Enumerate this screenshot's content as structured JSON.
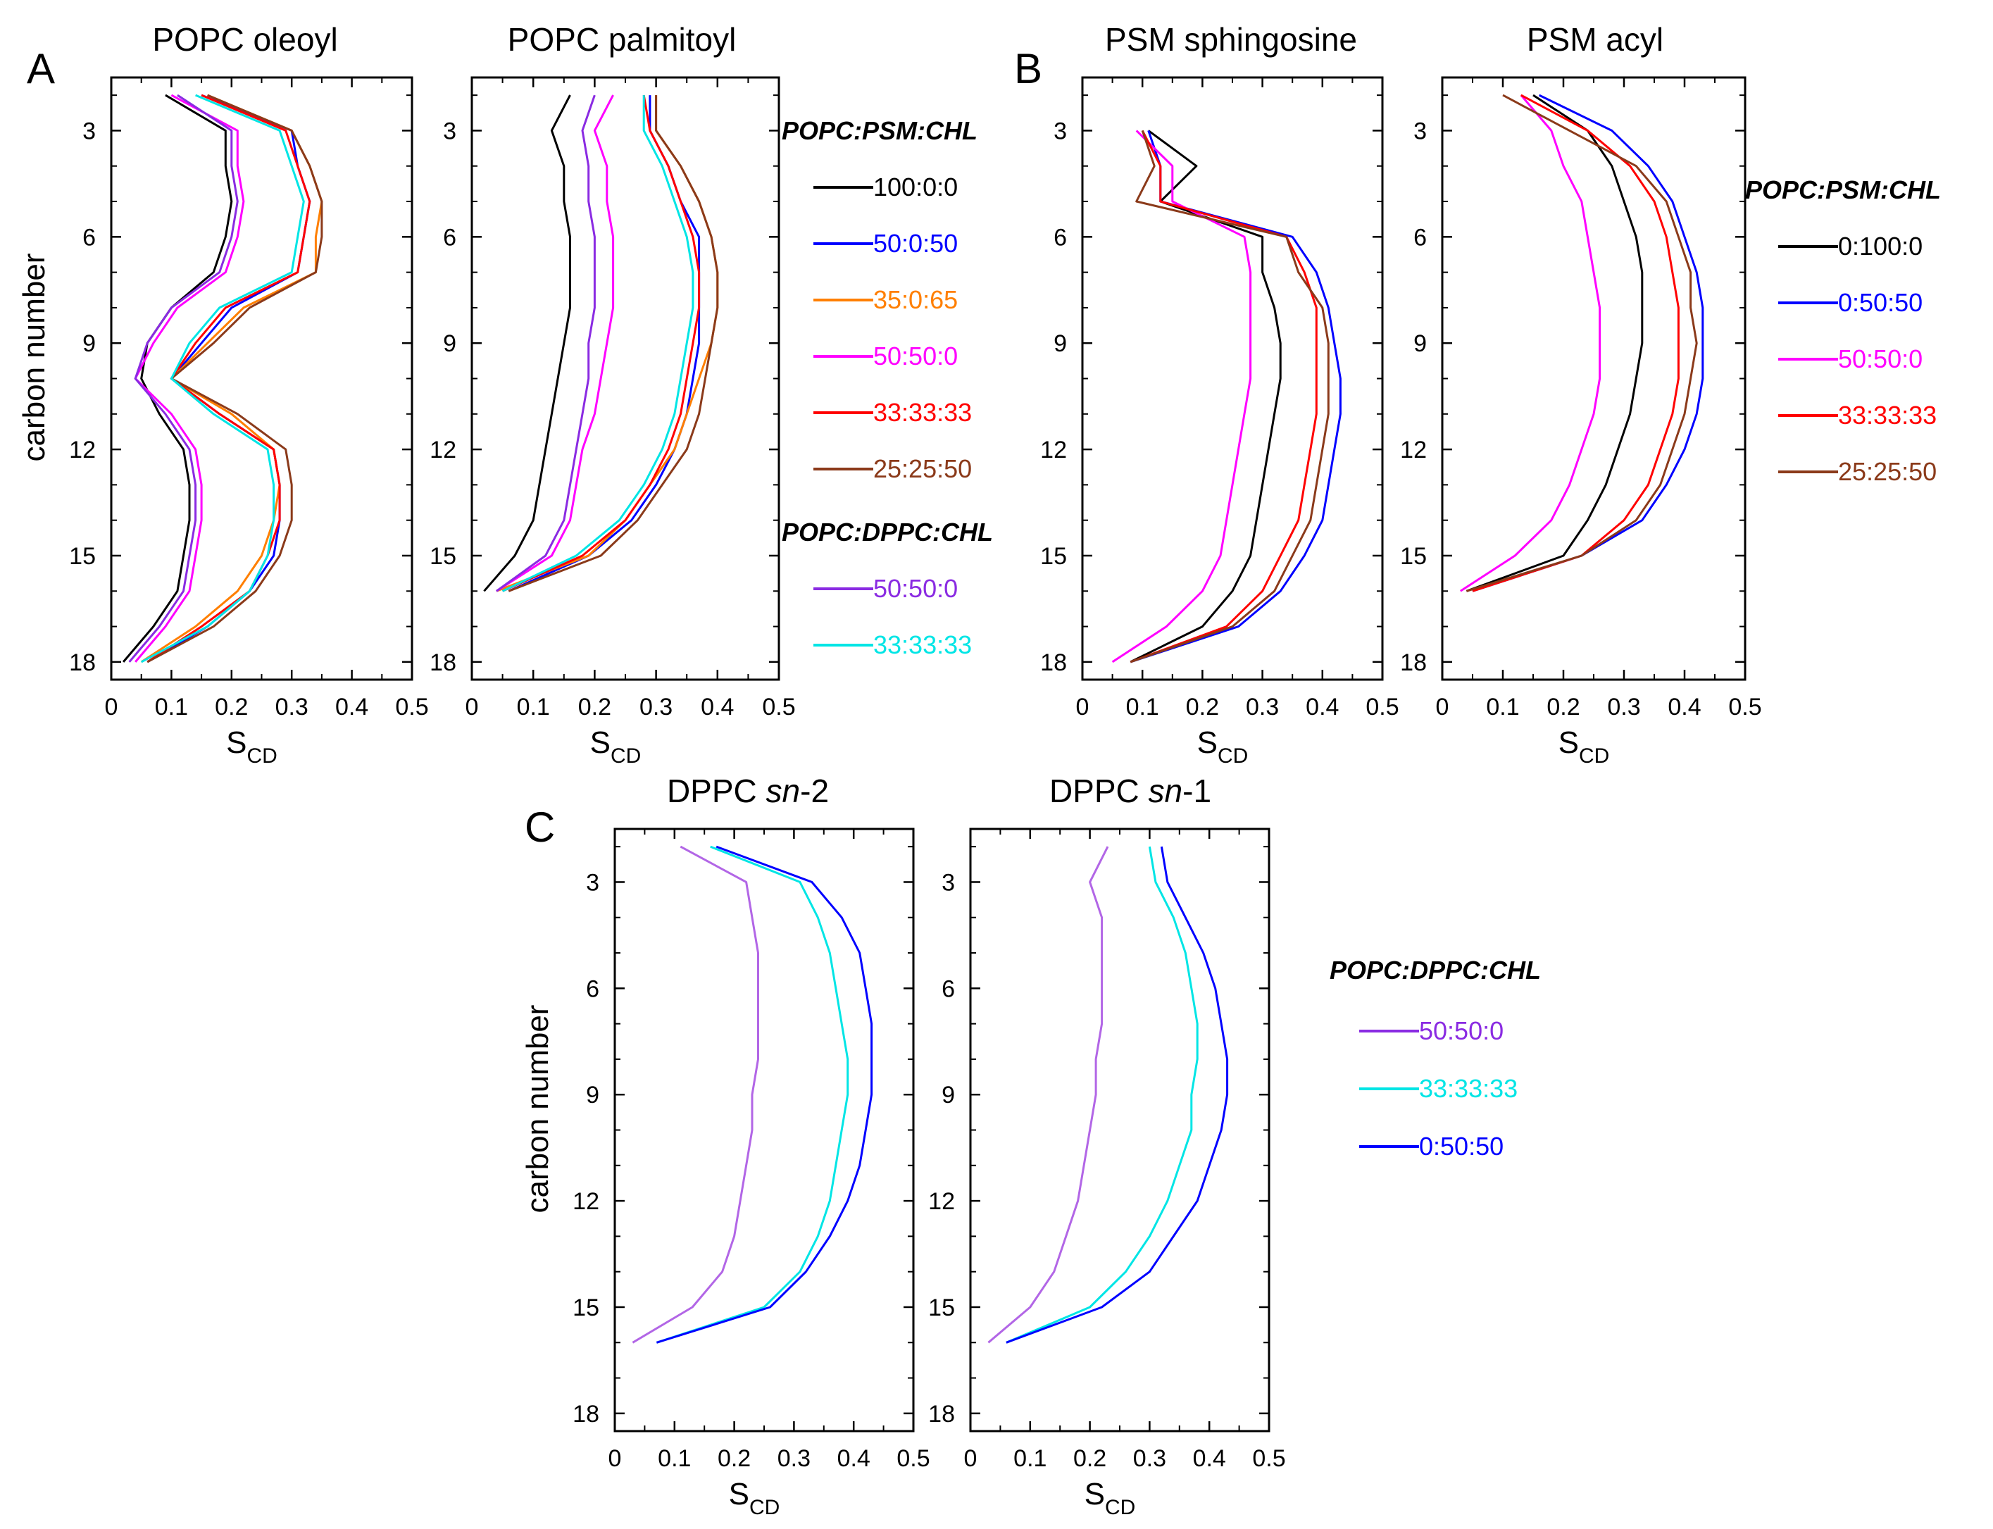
{
  "panel_labels": [
    "A",
    "B",
    "C"
  ],
  "legends": {
    "A": {
      "groups": [
        {
          "title": "POPC:PSM:CHL",
          "entries": [
            {
              "label": "100:0:0",
              "color": "#000000"
            },
            {
              "label": "50:0:50",
              "color": "#0000ff"
            },
            {
              "label": "35:0:65",
              "color": "#ff7f00"
            },
            {
              "label": "50:50:0",
              "color": "#ff00ff"
            },
            {
              "label": "33:33:33",
              "color": "#ff0000"
            },
            {
              "label": "25:25:50",
              "color": "#8b3a1a"
            }
          ]
        },
        {
          "title": "POPC:DPPC:CHL",
          "entries": [
            {
              "label": "50:50:0",
              "color": "#8a2be2"
            },
            {
              "label": "33:33:33",
              "color": "#00e5e5"
            }
          ]
        }
      ]
    },
    "B": {
      "groups": [
        {
          "title": "POPC:PSM:CHL",
          "entries": [
            {
              "label": "0:100:0",
              "color": "#000000"
            },
            {
              "label": "0:50:50",
              "color": "#0000ff"
            },
            {
              "label": "50:50:0",
              "color": "#ff00ff"
            },
            {
              "label": "33:33:33",
              "color": "#ff0000"
            },
            {
              "label": "25:25:50",
              "color": "#8b3a1a"
            }
          ]
        }
      ]
    },
    "C": {
      "groups": [
        {
          "title": "POPC:DPPC:CHL",
          "entries": [
            {
              "label": "50:50:0",
              "color": "#8a2be2"
            },
            {
              "label": "33:33:33",
              "color": "#00e5e5"
            },
            {
              "label": "0:50:50",
              "color": "#0000ff"
            }
          ]
        }
      ]
    }
  },
  "chart_data": [
    {
      "type": "line",
      "panel": "A",
      "title": "POPC oleoyl",
      "xlabel": "S",
      "xlabel_sub": "CD",
      "ylabel": "carbon number",
      "xlim": [
        0,
        0.5
      ],
      "ylim": [
        18.5,
        1.5
      ],
      "xticks": [
        "0",
        "0.1",
        "0.2",
        "0.3",
        "0.4",
        "0.5"
      ],
      "yticks": [
        "3",
        "6",
        "9",
        "12",
        "15",
        "18"
      ],
      "x": [
        2,
        3,
        4,
        5,
        6,
        7,
        8,
        9,
        10,
        11,
        12,
        13,
        14,
        15,
        16,
        17,
        18
      ],
      "series": [
        {
          "name": "100:0:0",
          "color": "#000000",
          "values": [
            0.09,
            0.19,
            0.19,
            0.2,
            0.19,
            0.17,
            0.1,
            0.06,
            0.05,
            0.08,
            0.12,
            0.13,
            0.13,
            0.12,
            0.11,
            0.07,
            0.02
          ]
        },
        {
          "name": "50:0:50",
          "color": "#0000ff",
          "values": [
            0.15,
            0.3,
            0.31,
            0.33,
            0.32,
            0.31,
            0.2,
            0.15,
            0.1,
            0.18,
            0.27,
            0.28,
            0.28,
            0.27,
            0.23,
            0.16,
            0.06
          ]
        },
        {
          "name": "35:0:65",
          "color": "#ff7f00",
          "values": [
            0.16,
            0.3,
            0.33,
            0.35,
            0.34,
            0.34,
            0.22,
            0.16,
            0.1,
            0.2,
            0.27,
            0.28,
            0.27,
            0.25,
            0.21,
            0.14,
            0.05
          ]
        },
        {
          "name": "50:50:0",
          "color": "#ff00ff",
          "values": [
            0.1,
            0.21,
            0.21,
            0.22,
            0.21,
            0.19,
            0.11,
            0.07,
            0.04,
            0.1,
            0.14,
            0.15,
            0.15,
            0.14,
            0.13,
            0.09,
            0.04
          ]
        },
        {
          "name": "33:33:33",
          "color": "#ff0000",
          "values": [
            0.15,
            0.29,
            0.31,
            0.33,
            0.32,
            0.31,
            0.19,
            0.14,
            0.1,
            0.18,
            0.27,
            0.28,
            0.28,
            0.26,
            0.23,
            0.15,
            0.06
          ]
        },
        {
          "name": "25:25:50",
          "color": "#8b3a1a",
          "values": [
            0.16,
            0.3,
            0.33,
            0.35,
            0.35,
            0.34,
            0.23,
            0.17,
            0.1,
            0.21,
            0.29,
            0.3,
            0.3,
            0.28,
            0.24,
            0.17,
            0.06
          ]
        },
        {
          "name": "50:50:0 (DPPC)",
          "color": "#8a2be2",
          "values": [
            0.11,
            0.2,
            0.2,
            0.21,
            0.2,
            0.18,
            0.1,
            0.06,
            0.04,
            0.09,
            0.13,
            0.14,
            0.14,
            0.13,
            0.12,
            0.08,
            0.03
          ]
        },
        {
          "name": "33:33:33 (DPPC)",
          "color": "#00e5e5",
          "values": [
            0.14,
            0.28,
            0.3,
            0.32,
            0.31,
            0.3,
            0.18,
            0.13,
            0.1,
            0.17,
            0.26,
            0.27,
            0.27,
            0.26,
            0.23,
            0.16,
            0.05
          ]
        }
      ]
    },
    {
      "type": "line",
      "panel": "A",
      "title": "POPC palmitoyl",
      "xlabel": "S",
      "xlabel_sub": "CD",
      "ylabel": "",
      "xlim": [
        0,
        0.5
      ],
      "ylim": [
        18.5,
        1.5
      ],
      "xticks": [
        "0",
        "0.1",
        "0.2",
        "0.3",
        "0.4",
        "0.5"
      ],
      "yticks": [
        "3",
        "6",
        "9",
        "12",
        "15",
        "18"
      ],
      "x": [
        2,
        3,
        4,
        5,
        6,
        7,
        8,
        9,
        10,
        11,
        12,
        13,
        14,
        15,
        16
      ],
      "series": [
        {
          "name": "100:0:0",
          "color": "#000000",
          "values": [
            0.16,
            0.13,
            0.15,
            0.15,
            0.16,
            0.16,
            0.16,
            0.15,
            0.14,
            0.13,
            0.12,
            0.11,
            0.1,
            0.07,
            0.02
          ]
        },
        {
          "name": "50:0:50",
          "color": "#0000ff",
          "values": [
            0.29,
            0.29,
            0.32,
            0.34,
            0.37,
            0.37,
            0.37,
            0.37,
            0.36,
            0.35,
            0.33,
            0.3,
            0.26,
            0.19,
            0.06
          ]
        },
        {
          "name": "35:0:65",
          "color": "#ff7f00",
          "values": [
            0.3,
            0.3,
            0.34,
            0.37,
            0.39,
            0.4,
            0.4,
            0.39,
            0.37,
            0.35,
            0.33,
            0.29,
            0.25,
            0.19,
            0.04
          ]
        },
        {
          "name": "50:50:0",
          "color": "#ff00ff",
          "values": [
            0.23,
            0.2,
            0.22,
            0.22,
            0.23,
            0.23,
            0.23,
            0.22,
            0.21,
            0.2,
            0.18,
            0.17,
            0.16,
            0.13,
            0.04
          ]
        },
        {
          "name": "33:33:33",
          "color": "#ff0000",
          "values": [
            0.28,
            0.29,
            0.32,
            0.34,
            0.36,
            0.37,
            0.37,
            0.36,
            0.35,
            0.34,
            0.32,
            0.29,
            0.25,
            0.18,
            0.05
          ]
        },
        {
          "name": "25:25:50",
          "color": "#8b3a1a",
          "values": [
            0.3,
            0.3,
            0.34,
            0.37,
            0.39,
            0.4,
            0.4,
            0.39,
            0.38,
            0.37,
            0.35,
            0.31,
            0.27,
            0.21,
            0.06
          ]
        },
        {
          "name": "50:50:0 (DPPC)",
          "color": "#8a2be2",
          "values": [
            0.2,
            0.18,
            0.19,
            0.19,
            0.2,
            0.2,
            0.2,
            0.19,
            0.19,
            0.18,
            0.17,
            0.16,
            0.15,
            0.12,
            0.04
          ]
        },
        {
          "name": "33:33:33 (DPPC)",
          "color": "#00e5e5",
          "values": [
            0.28,
            0.28,
            0.31,
            0.33,
            0.35,
            0.36,
            0.36,
            0.35,
            0.34,
            0.33,
            0.31,
            0.28,
            0.24,
            0.17,
            0.05
          ]
        }
      ]
    },
    {
      "type": "line",
      "panel": "B",
      "title": "PSM sphingosine",
      "xlabel": "S",
      "xlabel_sub": "CD",
      "ylabel": "",
      "xlim": [
        0,
        0.5
      ],
      "ylim": [
        18.5,
        1.5
      ],
      "xticks": [
        "0",
        "0.1",
        "0.2",
        "0.3",
        "0.4",
        "0.5"
      ],
      "yticks": [
        "3",
        "6",
        "9",
        "12",
        "15",
        "18"
      ],
      "x": [
        3,
        4,
        5,
        6,
        7,
        8,
        9,
        10,
        11,
        12,
        13,
        14,
        15,
        16,
        17,
        18
      ],
      "series": [
        {
          "name": "0:100:0",
          "color": "#000000",
          "values": [
            0.11,
            0.19,
            0.13,
            0.3,
            0.3,
            0.32,
            0.33,
            0.33,
            0.32,
            0.31,
            0.3,
            0.29,
            0.28,
            0.25,
            0.2,
            0.08
          ]
        },
        {
          "name": "0:50:50",
          "color": "#0000ff",
          "values": [
            0.11,
            0.13,
            0.13,
            0.35,
            0.39,
            0.41,
            0.42,
            0.43,
            0.43,
            0.42,
            0.41,
            0.4,
            0.37,
            0.33,
            0.26,
            0.08
          ]
        },
        {
          "name": "50:50:0",
          "color": "#ff00ff",
          "values": [
            0.09,
            0.15,
            0.15,
            0.27,
            0.28,
            0.28,
            0.28,
            0.28,
            0.27,
            0.26,
            0.25,
            0.24,
            0.23,
            0.2,
            0.14,
            0.05
          ]
        },
        {
          "name": "33:33:33",
          "color": "#ff0000",
          "values": [
            0.1,
            0.13,
            0.13,
            0.34,
            0.37,
            0.39,
            0.39,
            0.39,
            0.39,
            0.38,
            0.37,
            0.36,
            0.33,
            0.3,
            0.24,
            0.08
          ]
        },
        {
          "name": "25:25:50",
          "color": "#8b3a1a",
          "values": [
            0.1,
            0.12,
            0.09,
            0.34,
            0.36,
            0.4,
            0.41,
            0.41,
            0.41,
            0.4,
            0.39,
            0.38,
            0.35,
            0.32,
            0.25,
            0.08
          ]
        }
      ]
    },
    {
      "type": "line",
      "panel": "B",
      "title": "PSM acyl",
      "xlabel": "S",
      "xlabel_sub": "CD",
      "ylabel": "",
      "xlim": [
        0,
        0.5
      ],
      "ylim": [
        18.5,
        1.5
      ],
      "xticks": [
        "0",
        "0.1",
        "0.2",
        "0.3",
        "0.4",
        "0.5"
      ],
      "yticks": [
        "3",
        "6",
        "9",
        "12",
        "15",
        "18"
      ],
      "x": [
        2,
        3,
        4,
        5,
        6,
        7,
        8,
        9,
        10,
        11,
        12,
        13,
        14,
        15,
        16
      ],
      "series": [
        {
          "name": "0:100:0",
          "color": "#000000",
          "values": [
            0.15,
            0.24,
            0.28,
            0.3,
            0.32,
            0.33,
            0.33,
            0.33,
            0.32,
            0.31,
            0.29,
            0.27,
            0.24,
            0.2,
            0.04
          ]
        },
        {
          "name": "0:50:50",
          "color": "#0000ff",
          "values": [
            0.16,
            0.28,
            0.34,
            0.38,
            0.4,
            0.42,
            0.43,
            0.43,
            0.43,
            0.42,
            0.4,
            0.37,
            0.33,
            0.23,
            0.05
          ]
        },
        {
          "name": "50:50:0",
          "color": "#ff00ff",
          "values": [
            0.13,
            0.18,
            0.2,
            0.23,
            0.24,
            0.25,
            0.26,
            0.26,
            0.26,
            0.25,
            0.23,
            0.21,
            0.18,
            0.12,
            0.03
          ]
        },
        {
          "name": "33:33:33",
          "color": "#ff0000",
          "values": [
            0.13,
            0.24,
            0.31,
            0.35,
            0.37,
            0.38,
            0.39,
            0.39,
            0.39,
            0.38,
            0.36,
            0.34,
            0.3,
            0.23,
            0.05
          ]
        },
        {
          "name": "25:25:50",
          "color": "#8b3a1a",
          "values": [
            0.1,
            0.21,
            0.32,
            0.37,
            0.39,
            0.41,
            0.41,
            0.42,
            0.41,
            0.4,
            0.38,
            0.36,
            0.32,
            0.23,
            0.04
          ]
        }
      ]
    },
    {
      "type": "line",
      "panel": "C",
      "title": "DPPC sn-2",
      "title_prefix": "DPPC ",
      "title_italic": "sn",
      "title_suffix": "-2",
      "xlabel": "S",
      "xlabel_sub": "CD",
      "ylabel": "carbon number",
      "xlim": [
        0,
        0.5
      ],
      "ylim": [
        18.5,
        1.5
      ],
      "xticks": [
        "0",
        "0.1",
        "0.2",
        "0.3",
        "0.4",
        "0.5"
      ],
      "yticks": [
        "3",
        "6",
        "9",
        "12",
        "15",
        "18"
      ],
      "x": [
        2,
        3,
        4,
        5,
        6,
        7,
        8,
        9,
        10,
        11,
        12,
        13,
        14,
        15,
        16
      ],
      "series": [
        {
          "name": "50:50:0",
          "color": "#b266e6",
          "values": [
            0.11,
            0.22,
            0.23,
            0.24,
            0.24,
            0.24,
            0.24,
            0.23,
            0.23,
            0.22,
            0.21,
            0.2,
            0.18,
            0.13,
            0.03
          ]
        },
        {
          "name": "33:33:33",
          "color": "#00e5e5",
          "values": [
            0.16,
            0.31,
            0.34,
            0.36,
            0.37,
            0.38,
            0.39,
            0.39,
            0.38,
            0.37,
            0.36,
            0.34,
            0.31,
            0.25,
            0.07
          ]
        },
        {
          "name": "0:50:50",
          "color": "#0000ff",
          "values": [
            0.17,
            0.33,
            0.38,
            0.41,
            0.42,
            0.43,
            0.43,
            0.43,
            0.42,
            0.41,
            0.39,
            0.36,
            0.32,
            0.26,
            0.07
          ]
        }
      ]
    },
    {
      "type": "line",
      "panel": "C",
      "title": "DPPC sn-1",
      "title_prefix": "DPPC ",
      "title_italic": "sn",
      "title_suffix": "-1",
      "xlabel": "S",
      "xlabel_sub": "CD",
      "ylabel": "",
      "xlim": [
        0,
        0.5
      ],
      "ylim": [
        18.5,
        1.5
      ],
      "xticks": [
        "0",
        "0.1",
        "0.2",
        "0.3",
        "0.4",
        "0.5"
      ],
      "yticks": [
        "3",
        "6",
        "9",
        "12",
        "15",
        "18"
      ],
      "x": [
        2,
        3,
        4,
        5,
        6,
        7,
        8,
        9,
        10,
        11,
        12,
        13,
        14,
        15,
        16
      ],
      "series": [
        {
          "name": "50:50:0",
          "color": "#b266e6",
          "values": [
            0.23,
            0.2,
            0.22,
            0.22,
            0.22,
            0.22,
            0.21,
            0.21,
            0.2,
            0.19,
            0.18,
            0.16,
            0.14,
            0.1,
            0.03
          ]
        },
        {
          "name": "33:33:33",
          "color": "#00e5e5",
          "values": [
            0.3,
            0.31,
            0.34,
            0.36,
            0.37,
            0.38,
            0.38,
            0.37,
            0.37,
            0.35,
            0.33,
            0.3,
            0.26,
            0.2,
            0.06
          ]
        },
        {
          "name": "0:50:50",
          "color": "#0000ff",
          "values": [
            0.32,
            0.33,
            0.36,
            0.39,
            0.41,
            0.42,
            0.43,
            0.43,
            0.42,
            0.4,
            0.38,
            0.34,
            0.3,
            0.22,
            0.06
          ]
        }
      ]
    }
  ]
}
